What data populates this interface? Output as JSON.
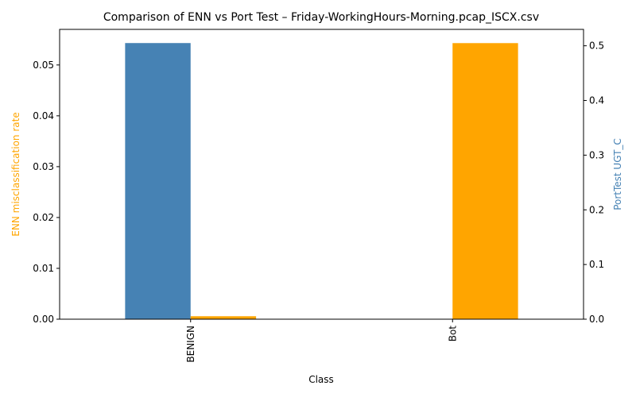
{
  "chart_data": {
    "type": "bar",
    "title": "Comparison of ENN vs Port Test – Friday-WorkingHours-Morning.pcap_ISCX.csv",
    "xlabel": "Class",
    "categories": [
      "BENIGN",
      "Bot"
    ],
    "series": [
      {
        "name": "PortTest UGT_C",
        "axis": "right",
        "color": "#4682b4",
        "values": [
          0.505,
          0.0
        ]
      },
      {
        "name": "ENN misclassification rate",
        "axis": "left",
        "color": "#ffa500",
        "values": [
          0.00058,
          0.0543
        ]
      }
    ],
    "y_left": {
      "label": "ENN misclassification rate",
      "label_color": "#ffa500",
      "ylim": [
        0,
        0.057
      ],
      "ticks": [
        0.0,
        0.01,
        0.02,
        0.03,
        0.04,
        0.05
      ],
      "tick_labels": [
        "0.00",
        "0.01",
        "0.02",
        "0.03",
        "0.04",
        "0.05"
      ]
    },
    "y_right": {
      "label": "PortTest UGT_C",
      "label_color": "#4682b4",
      "ylim": [
        0,
        0.53
      ],
      "ticks": [
        0.0,
        0.1,
        0.2,
        0.3,
        0.4,
        0.5
      ],
      "tick_labels": [
        "0.0",
        "0.1",
        "0.2",
        "0.3",
        "0.4",
        "0.5"
      ]
    },
    "grid": false,
    "legend": "none"
  }
}
